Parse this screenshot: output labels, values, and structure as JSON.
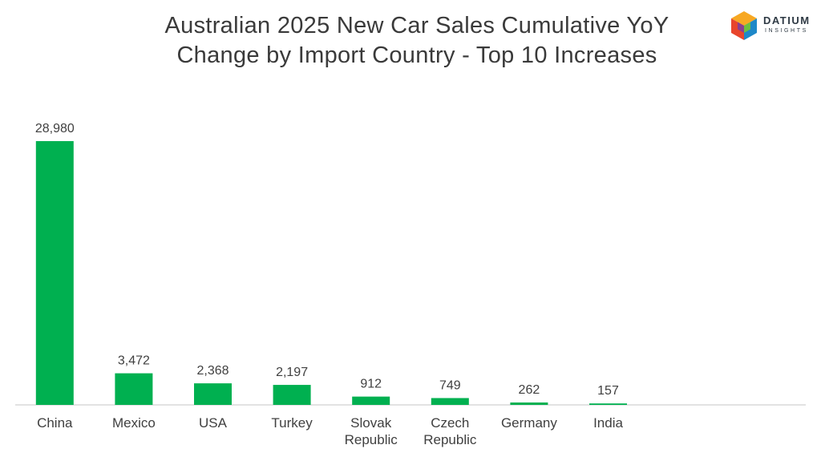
{
  "title_lines": [
    "Australian 2025 New Car Sales Cumulative YoY",
    "Change by Import Country - Top 10 Increases"
  ],
  "logo": {
    "word": "DATIUM",
    "sub": "INSIGHTS",
    "icon": "datium-cube-logo-icon"
  },
  "colors": {
    "bar": "#00b050",
    "axis": "#d9d9d9",
    "text": "#404040"
  },
  "chart_data": {
    "type": "bar",
    "title": "Australian 2025 New Car Sales Cumulative YoY Change by Import Country - Top 10 Increases",
    "categories": [
      [
        "China"
      ],
      [
        "Mexico"
      ],
      [
        "USA"
      ],
      [
        "Turkey"
      ],
      [
        "Slovak",
        "Republic"
      ],
      [
        "Czech",
        "Republic"
      ],
      [
        "Germany"
      ],
      [
        "India"
      ]
    ],
    "values": [
      28980,
      3472,
      2368,
      2197,
      912,
      749,
      262,
      157
    ],
    "value_labels": [
      "28,980",
      "3,472",
      "2,368",
      "2,197",
      "912",
      "749",
      "262",
      "157"
    ],
    "slots": 10,
    "ylim": [
      0,
      28980
    ],
    "grid": false,
    "legend": "none"
  }
}
